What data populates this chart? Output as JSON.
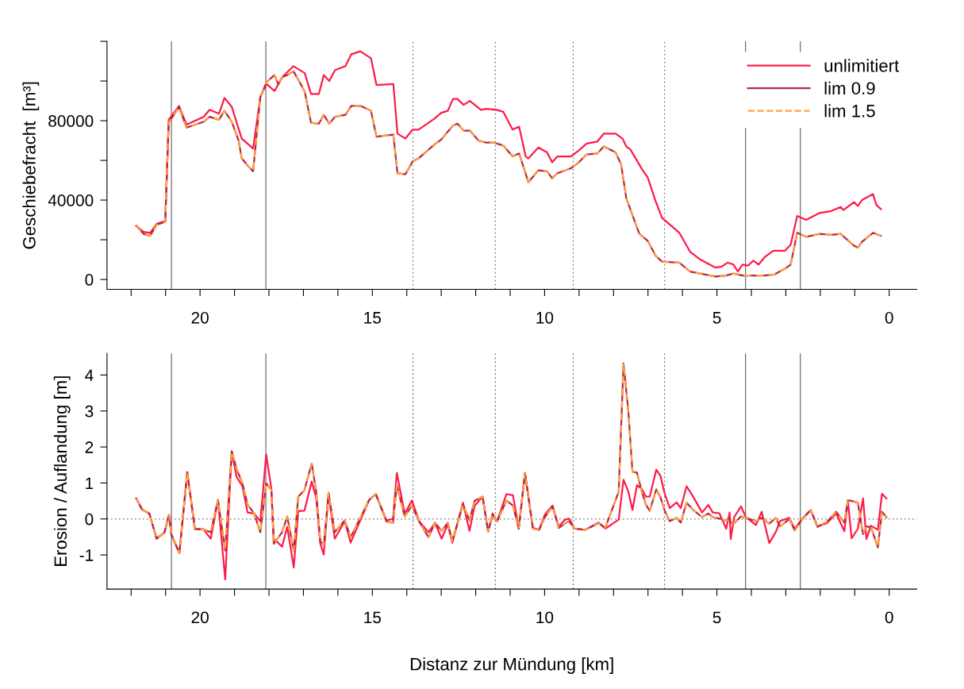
{
  "chart_data": [
    {
      "type": "line",
      "ylabel": "Geschiebefracht  [m³]",
      "xlim": [
        22.7,
        -0.8
      ],
      "ylim": [
        -5000,
        120000
      ],
      "xticks": [
        {
          "value": 22,
          "label": null
        },
        {
          "value": 21,
          "label": null
        },
        20,
        {
          "value": 19,
          "label": null
        },
        {
          "value": 18,
          "label": null
        },
        {
          "value": 17,
          "label": null
        },
        {
          "value": 16,
          "label": null
        },
        15,
        {
          "value": 14,
          "label": null
        },
        {
          "value": 13,
          "label": null
        },
        {
          "value": 12,
          "label": null
        },
        {
          "value": 11,
          "label": null
        },
        10,
        {
          "value": 9,
          "label": null
        },
        {
          "value": 8,
          "label": null
        },
        {
          "value": 7,
          "label": null
        },
        {
          "value": 6,
          "label": null
        },
        5,
        {
          "value": 4,
          "label": null
        },
        {
          "value": 3,
          "label": null
        },
        {
          "value": 2,
          "label": null
        },
        {
          "value": 1,
          "label": null
        },
        0
      ],
      "yticks": [
        0,
        {
          "value": 20000,
          "label": null
        },
        40000,
        {
          "value": 60000,
          "label": null
        },
        80000,
        {
          "value": 100000,
          "label": null
        },
        {
          "value": 120000,
          "label": null
        }
      ],
      "legend": "top right",
      "grid": false,
      "ref_lines": [
        {
          "axis": "x",
          "value": 20.83,
          "color": "#707070",
          "line_style": "solid"
        },
        {
          "axis": "x",
          "value": 18.09,
          "color": "#707070",
          "line_style": "solid"
        },
        {
          "axis": "x",
          "value": 13.82,
          "color": "#707070",
          "line_style": "dotted"
        },
        {
          "axis": "x",
          "value": 11.43,
          "color": "#707070",
          "line_style": "dotted"
        },
        {
          "axis": "x",
          "value": 9.17,
          "color": "#707070",
          "line_style": "dotted"
        },
        {
          "axis": "x",
          "value": 6.52,
          "color": "#707070",
          "line_style": "dotted"
        },
        {
          "axis": "x",
          "value": 4.17,
          "color": "#707070",
          "line_style": "solid"
        },
        {
          "axis": "x",
          "value": 2.58,
          "color": "#707070",
          "line_style": "solid"
        }
      ],
      "series": [
        {
          "name": "unlimitiert",
          "color": "#ff1a4a",
          "line_style": "solid",
          "x": [
            21.85,
            21.64,
            21.45,
            21.26,
            21.01,
            20.91,
            20.61,
            20.39,
            19.89,
            19.72,
            19.45,
            19.29,
            19.08,
            18.79,
            18.46,
            18.25,
            18.07,
            17.84,
            17.61,
            17.29,
            16.96,
            16.78,
            16.55,
            16.41,
            16.25,
            16.08,
            15.78,
            15.61,
            15.35,
            15.04,
            14.88,
            14.39,
            14.27,
            14.04,
            13.83,
            13.66,
            13.2,
            13.0,
            12.81,
            12.66,
            12.53,
            12.35,
            12.17,
            11.85,
            11.7,
            11.39,
            11.2,
            10.93,
            10.74,
            10.55,
            10.47,
            10.18,
            9.93,
            9.78,
            9.63,
            9.24,
            9.01,
            8.78,
            8.47,
            8.28,
            7.94,
            7.74,
            7.63,
            7.51,
            7.17,
            7.01,
            6.78,
            6.59,
            6.32,
            6.09,
            5.78,
            5.48,
            5.05,
            4.86,
            4.69,
            4.52,
            4.39,
            4.26,
            4.09,
            3.94,
            3.79,
            3.6,
            3.36,
            3.02,
            2.86,
            2.67,
            2.41,
            2.02,
            1.68,
            1.41,
            1.33,
            1.02,
            0.91,
            0.79,
            0.47,
            0.37,
            0.24
          ],
          "values": [
            27000,
            24000,
            23500,
            28000,
            29500,
            80500,
            87500,
            78000,
            82000,
            85500,
            83500,
            91500,
            87000,
            71000,
            66000,
            92000,
            98500,
            95000,
            102000,
            107500,
            104000,
            93500,
            93500,
            103000,
            100000,
            105500,
            107500,
            113500,
            115000,
            111500,
            98000,
            98500,
            73500,
            71000,
            75500,
            75500,
            81000,
            84000,
            85000,
            91000,
            91000,
            88000,
            90000,
            85500,
            86000,
            85500,
            84500,
            75500,
            77000,
            62000,
            61000,
            66500,
            64000,
            59000,
            62000,
            62000,
            65000,
            68500,
            69500,
            73500,
            73500,
            71000,
            67000,
            65500,
            55500,
            51500,
            39500,
            31000,
            27000,
            23500,
            14000,
            10000,
            6000,
            6500,
            8500,
            7500,
            4000,
            7500,
            7000,
            9500,
            7500,
            11500,
            14500,
            14500,
            17500,
            32000,
            30000,
            33500,
            34500,
            36500,
            35000,
            39000,
            37000,
            40000,
            43000,
            37500,
            35500
          ]
        },
        {
          "name": "lim 0.9",
          "color": "#b3284a",
          "line_style": "solid",
          "x": [
            21.85,
            21.64,
            21.45,
            21.26,
            21.01,
            20.91,
            20.61,
            20.39,
            19.89,
            19.72,
            19.45,
            19.29,
            19.08,
            18.88,
            18.79,
            18.6,
            18.46,
            18.25,
            18.07,
            17.84,
            17.73,
            17.61,
            17.46,
            17.29,
            17.11,
            16.96,
            16.78,
            16.55,
            16.41,
            16.25,
            16.08,
            15.78,
            15.61,
            15.35,
            15.04,
            14.88,
            14.39,
            14.27,
            14.04,
            13.83,
            13.66,
            13.2,
            13.0,
            12.66,
            12.53,
            12.35,
            12.17,
            11.92,
            11.7,
            11.47,
            11.2,
            10.93,
            10.74,
            10.47,
            10.18,
            9.93,
            9.78,
            9.63,
            9.24,
            9.01,
            8.78,
            8.47,
            8.28,
            7.94,
            7.78,
            7.63,
            7.4,
            7.25,
            7.01,
            6.78,
            6.59,
            6.09,
            5.78,
            5.48,
            5.04,
            4.74,
            4.52,
            4.25,
            3.64,
            3.33,
            3.02,
            2.86,
            2.67,
            2.41,
            2.02,
            1.68,
            1.41,
            1.02,
            0.91,
            0.79,
            0.47,
            0.24
          ],
          "values": [
            27000,
            23000,
            22000,
            27500,
            29000,
            79000,
            87000,
            76500,
            79500,
            82000,
            80500,
            85000,
            79500,
            70000,
            61000,
            57000,
            54500,
            92000,
            99500,
            103000,
            98500,
            102000,
            103000,
            105000,
            99500,
            94500,
            79000,
            78500,
            83000,
            78500,
            82000,
            83000,
            87500,
            87500,
            85000,
            72000,
            73000,
            53500,
            53000,
            59500,
            61000,
            68000,
            70500,
            77500,
            78500,
            75000,
            75000,
            70000,
            69000,
            69000,
            67500,
            62000,
            63500,
            49000,
            55000,
            54500,
            51000,
            53500,
            56000,
            59000,
            63000,
            63500,
            67000,
            64000,
            58000,
            41000,
            30000,
            23000,
            19500,
            12000,
            9000,
            8500,
            4000,
            3000,
            1500,
            2000,
            3000,
            2000,
            2000,
            2500,
            5500,
            7500,
            23500,
            21500,
            23000,
            22500,
            23000,
            17000,
            16000,
            19000,
            23500,
            22000
          ]
        },
        {
          "name": "lim 1.5",
          "color": "#ffa040",
          "line_style": "dashed",
          "x": [
            21.85,
            21.64,
            21.45,
            21.26,
            21.01,
            20.91,
            20.61,
            20.39,
            19.89,
            19.72,
            19.45,
            19.29,
            19.08,
            18.88,
            18.79,
            18.6,
            18.46,
            18.25,
            18.07,
            17.84,
            17.73,
            17.61,
            17.46,
            17.29,
            17.11,
            16.96,
            16.78,
            16.55,
            16.41,
            16.25,
            16.08,
            15.78,
            15.61,
            15.35,
            15.04,
            14.88,
            14.39,
            14.27,
            14.04,
            13.83,
            13.66,
            13.2,
            13.0,
            12.66,
            12.53,
            12.35,
            12.17,
            11.92,
            11.7,
            11.47,
            11.2,
            10.93,
            10.74,
            10.47,
            10.18,
            9.93,
            9.78,
            9.63,
            9.24,
            9.01,
            8.78,
            8.47,
            8.28,
            7.94,
            7.78,
            7.63,
            7.4,
            7.25,
            7.01,
            6.78,
            6.59,
            6.09,
            5.78,
            5.48,
            5.04,
            4.74,
            4.52,
            4.25,
            3.64,
            3.33,
            3.02,
            2.86,
            2.67,
            2.41,
            2.02,
            1.68,
            1.41,
            1.02,
            0.91,
            0.79,
            0.47,
            0.24
          ],
          "values": [
            27000,
            23000,
            22000,
            27500,
            29000,
            79000,
            87000,
            76500,
            79500,
            82000,
            80500,
            85000,
            79500,
            70000,
            61000,
            57000,
            54500,
            92000,
            99500,
            103000,
            98500,
            102000,
            103000,
            105000,
            99500,
            94500,
            79000,
            78500,
            83000,
            78500,
            82000,
            83000,
            87500,
            87500,
            85000,
            72000,
            73000,
            53500,
            53000,
            59500,
            61000,
            68000,
            70500,
            77500,
            78500,
            75000,
            75000,
            70000,
            69000,
            69000,
            67500,
            62000,
            63500,
            49000,
            55000,
            54500,
            51000,
            53500,
            56000,
            59000,
            63000,
            63500,
            67000,
            64000,
            58000,
            41000,
            30000,
            23000,
            19500,
            12000,
            9000,
            8500,
            4000,
            3000,
            1500,
            2000,
            3000,
            2000,
            2000,
            2500,
            5500,
            7500,
            23500,
            21500,
            23000,
            22500,
            23000,
            17000,
            16000,
            19000,
            23500,
            22000
          ]
        }
      ]
    },
    {
      "type": "line",
      "ylabel": "Erosion / Auflandung [m]",
      "xlabel": "Distanz zur Mündung [km]",
      "xlim": [
        22.7,
        -0.8
      ],
      "ylim": [
        -1.95,
        4.6
      ],
      "xticks": [
        {
          "value": 22,
          "label": null
        },
        {
          "value": 21,
          "label": null
        },
        20,
        {
          "value": 19,
          "label": null
        },
        {
          "value": 18,
          "label": null
        },
        {
          "value": 17,
          "label": null
        },
        {
          "value": 16,
          "label": null
        },
        15,
        {
          "value": 14,
          "label": null
        },
        {
          "value": 13,
          "label": null
        },
        {
          "value": 12,
          "label": null
        },
        {
          "value": 11,
          "label": null
        },
        10,
        {
          "value": 9,
          "label": null
        },
        {
          "value": 8,
          "label": null
        },
        {
          "value": 7,
          "label": null
        },
        {
          "value": 6,
          "label": null
        },
        5,
        {
          "value": 4,
          "label": null
        },
        {
          "value": 3,
          "label": null
        },
        {
          "value": 2,
          "label": null
        },
        {
          "value": 1,
          "label": null
        },
        0
      ],
      "yticks": [
        -1,
        0,
        1,
        2,
        3,
        4
      ],
      "grid": false,
      "ref_lines": [
        {
          "axis": "y",
          "value": 0,
          "color": "#808080",
          "line_style": "dotted"
        },
        {
          "axis": "x",
          "value": 20.83,
          "color": "#707070",
          "line_style": "solid"
        },
        {
          "axis": "x",
          "value": 18.09,
          "color": "#707070",
          "line_style": "solid"
        },
        {
          "axis": "x",
          "value": 13.82,
          "color": "#707070",
          "line_style": "dotted"
        },
        {
          "axis": "x",
          "value": 11.43,
          "color": "#707070",
          "line_style": "dotted"
        },
        {
          "axis": "x",
          "value": 9.17,
          "color": "#707070",
          "line_style": "dotted"
        },
        {
          "axis": "x",
          "value": 6.52,
          "color": "#707070",
          "line_style": "dotted"
        },
        {
          "axis": "x",
          "value": 4.17,
          "color": "#707070",
          "line_style": "solid"
        },
        {
          "axis": "x",
          "value": 2.58,
          "color": "#707070",
          "line_style": "solid"
        }
      ],
      "x": [
        21.85,
        21.68,
        21.47,
        21.26,
        21.03,
        20.9,
        20.83,
        20.6,
        20.37,
        20.15,
        19.9,
        19.69,
        19.48,
        19.27,
        19.08,
        18.94,
        18.77,
        18.62,
        18.43,
        18.25,
        18.08,
        17.93,
        17.86,
        17.62,
        17.47,
        17.28,
        17.15,
        16.97,
        16.76,
        16.63,
        16.51,
        16.41,
        16.27,
        16.09,
        15.8,
        15.63,
        15.09,
        14.9,
        14.59,
        14.4,
        14.29,
        14.06,
        13.85,
        13.64,
        13.37,
        13.18,
        12.99,
        12.81,
        12.68,
        12.37,
        12.18,
        12.03,
        11.8,
        11.64,
        11.51,
        11.38,
        11.11,
        10.92,
        10.75,
        10.57,
        10.34,
        10.16,
        9.99,
        9.77,
        9.59,
        9.41,
        9.29,
        9.13,
        8.82,
        8.43,
        8.24,
        7.85,
        7.71,
        7.57,
        7.45,
        7.32,
        7.18,
        7.06,
        6.95,
        6.76,
        6.64,
        6.52,
        6.37,
        6.17,
        6.05,
        5.88,
        5.69,
        5.43,
        5.25,
        5.12,
        4.93,
        4.73,
        4.63,
        4.6,
        4.5,
        4.3,
        4.16,
        3.87,
        3.7,
        3.48,
        3.29,
        3.17,
        2.9,
        2.74,
        2.55,
        2.28,
        2.08,
        1.81,
        1.54,
        1.3,
        1.2,
        1.09,
        0.91,
        0.76,
        0.66,
        0.53,
        0.33,
        0.21,
        0.08
      ],
      "series": [
        {
          "color": "#ff1a4a",
          "line_style": "solid",
          "values": [
            0.57,
            0.26,
            0.15,
            -0.55,
            -0.37,
            0.11,
            -0.44,
            -0.95,
            1.3,
            -0.28,
            -0.29,
            -0.55,
            0.53,
            -1.68,
            1.88,
            1.17,
            0.91,
            0.18,
            0.15,
            -0.07,
            1.79,
            0.84,
            -0.55,
            -0.77,
            -0.22,
            -1.35,
            0.22,
            0.23,
            1.04,
            0.59,
            -0.69,
            -0.99,
            0.69,
            -0.55,
            -0.06,
            -0.66,
            0.53,
            0.69,
            -0.04,
            0.0,
            1.28,
            0.15,
            0.51,
            -0.07,
            -0.37,
            -0.11,
            -0.55,
            -0.15,
            -0.66,
            0.45,
            -0.33,
            0.37,
            0.62,
            -0.35,
            0.11,
            -0.07,
            0.69,
            0.66,
            -0.27,
            1.28,
            -0.25,
            -0.3,
            0.13,
            0.37,
            -0.21,
            -0.02,
            0.01,
            -0.27,
            -0.3,
            -0.1,
            -0.27,
            -0.02,
            1.09,
            0.76,
            0.25,
            0.94,
            0.83,
            0.62,
            0.62,
            1.37,
            1.2,
            0.72,
            0.3,
            0.46,
            0.3,
            0.91,
            0.62,
            0.18,
            0.39,
            0.18,
            0.16,
            -0.27,
            0.18,
            -0.56,
            0.05,
            0.35,
            0.05,
            -0.17,
            0.2,
            -0.67,
            -0.36,
            -0.06,
            0.03,
            -0.28,
            -0.02,
            0.25,
            -0.21,
            -0.12,
            0.15,
            -0.34,
            0.52,
            -0.54,
            -0.27,
            0.57,
            -0.56,
            -0.19,
            -0.3,
            0.7,
            0.57
          ]
        },
        {
          "color": "#b3284a",
          "line_style": "solid",
          "values": [
            0.57,
            0.26,
            0.15,
            -0.55,
            -0.37,
            0.11,
            -0.44,
            -0.95,
            1.3,
            -0.28,
            -0.29,
            -0.37,
            0.53,
            -0.88,
            1.88,
            1.39,
            0.99,
            0.4,
            0.15,
            -0.37,
            0.99,
            0.8,
            -0.69,
            -0.37,
            0.07,
            -0.88,
            0.62,
            0.8,
            1.54,
            0.77,
            -0.62,
            -0.73,
            0.73,
            -0.37,
            -0.04,
            -0.51,
            0.53,
            0.69,
            -0.07,
            -0.11,
            0.94,
            0.07,
            0.37,
            -0.07,
            -0.51,
            -0.11,
            -0.33,
            -0.11,
            -0.62,
            0.4,
            -0.04,
            0.51,
            0.62,
            -0.35,
            0.15,
            -0.07,
            0.51,
            0.37,
            -0.27,
            1.28,
            -0.27,
            -0.3,
            0.05,
            0.35,
            -0.25,
            -0.13,
            -0.06,
            -0.27,
            -0.3,
            -0.12,
            -0.25,
            0.76,
            4.32,
            2.99,
            1.31,
            1.29,
            0.76,
            0.4,
            0.22,
            0.82,
            0.61,
            0.24,
            -0.06,
            0.03,
            -0.1,
            0.45,
            0.25,
            0.05,
            0.15,
            0.05,
            0.01,
            -0.05,
            -0.02,
            -0.1,
            -0.12,
            0.07,
            0.03,
            -0.06,
            0.03,
            -0.13,
            0.03,
            -0.21,
            0.0,
            -0.32,
            -0.04,
            0.25,
            -0.22,
            -0.08,
            0.2,
            -0.1,
            0.52,
            0.5,
            0.45,
            -0.42,
            -0.21,
            -0.22,
            -0.79,
            0.2,
            0.05
          ]
        },
        {
          "color": "#ffa040",
          "line_style": "dashed",
          "values": [
            0.57,
            0.26,
            0.15,
            -0.55,
            -0.37,
            0.11,
            -0.44,
            -0.95,
            1.3,
            -0.28,
            -0.29,
            -0.37,
            0.53,
            -0.88,
            1.88,
            1.39,
            0.99,
            0.4,
            0.15,
            -0.37,
            0.99,
            0.8,
            -0.69,
            -0.37,
            0.07,
            -0.88,
            0.62,
            0.8,
            1.54,
            0.77,
            -0.62,
            -0.73,
            0.73,
            -0.37,
            -0.04,
            -0.51,
            0.53,
            0.69,
            -0.07,
            -0.11,
            0.94,
            0.07,
            0.37,
            -0.07,
            -0.51,
            -0.11,
            -0.33,
            -0.11,
            -0.62,
            0.4,
            -0.04,
            0.51,
            0.62,
            -0.35,
            0.15,
            -0.07,
            0.51,
            0.37,
            -0.27,
            1.28,
            -0.27,
            -0.3,
            0.05,
            0.35,
            -0.25,
            -0.13,
            -0.06,
            -0.27,
            -0.3,
            -0.12,
            -0.25,
            0.76,
            4.32,
            2.99,
            1.31,
            1.29,
            0.76,
            0.4,
            0.22,
            0.82,
            0.61,
            0.24,
            -0.06,
            0.03,
            -0.1,
            0.45,
            0.25,
            0.05,
            0.15,
            0.05,
            0.01,
            -0.05,
            -0.02,
            -0.1,
            -0.12,
            0.07,
            0.03,
            -0.06,
            0.03,
            -0.13,
            0.03,
            -0.21,
            0.0,
            -0.32,
            -0.04,
            0.25,
            -0.22,
            -0.08,
            0.2,
            -0.1,
            0.52,
            0.5,
            0.45,
            -0.42,
            -0.21,
            -0.22,
            -0.79,
            0.2,
            0.05
          ]
        }
      ]
    }
  ]
}
